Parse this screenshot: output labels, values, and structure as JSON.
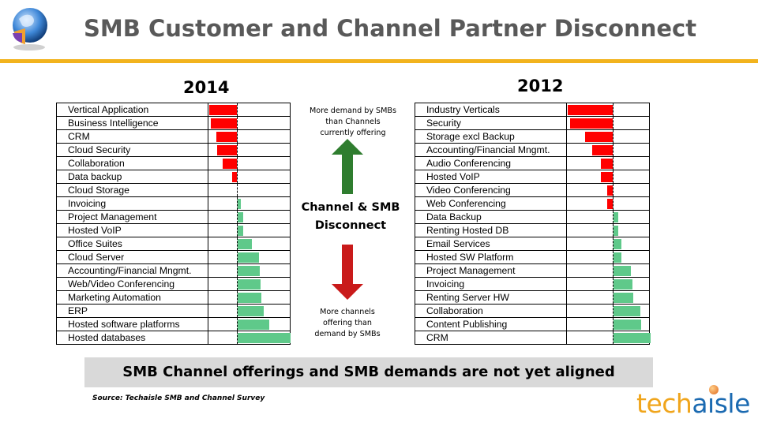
{
  "header": {
    "title": "SMB Customer and Channel Partner Disconnect"
  },
  "middle": {
    "top_note": [
      "More demand by SMBs",
      "than Channels",
      "currently offering"
    ],
    "center_label": [
      "Channel & SMB",
      "Disconnect"
    ],
    "bottom_note": [
      "More channels",
      "offering than",
      "demand by SMBs"
    ]
  },
  "banner": {
    "text": "SMB Channel offerings and SMB demands are not yet aligned"
  },
  "source": {
    "text": "Source: Techaisle SMB and Channel Survey"
  },
  "logo": {
    "part1": "tech",
    "part2": "a",
    "part3": "ı",
    "part4": "sle"
  },
  "colors": {
    "accent": "#f2b31d",
    "negative": "#ff0000",
    "positive": "#5fc98a",
    "banner": "#d9d9d9"
  },
  "chart_data": [
    {
      "type": "bar",
      "title": "2014",
      "orientation": "horizontal",
      "xlim": [
        -1.0,
        1.9
      ],
      "categories": [
        "Vertical Application",
        "Business Intelligence",
        "CRM",
        "Cloud Security",
        "Collaboration",
        "Data backup",
        "Cloud Storage",
        "Invoicing",
        "Project Management",
        "Hosted VoIP",
        "Office Suites",
        "Cloud Server",
        "Accounting/Financial Mngmt.",
        "Web/Video Conferencing",
        "Marketing Automation",
        "ERP",
        "Hosted software platforms",
        "Hosted databases"
      ],
      "values": [
        -0.98,
        -0.93,
        -0.72,
        -0.69,
        -0.51,
        -0.17,
        0,
        0.12,
        0.2,
        0.2,
        0.5,
        0.75,
        0.78,
        0.8,
        0.83,
        0.93,
        1.13,
        1.87
      ]
    },
    {
      "type": "bar",
      "title": "2012",
      "orientation": "horizontal",
      "xlim": [
        -1.0,
        0.8
      ],
      "categories": [
        "Industry Verticals",
        "Security",
        "Storage excl Backup",
        "Accounting/Financial Mngmt.",
        "Audio Conferencing",
        "Hosted VoIP",
        "Video Conferencing",
        "Web Conferencing",
        "Data Backup",
        "Renting Hosted DB",
        "Email Services",
        "Hosted SW Platform",
        "Project Management",
        "Invoicing",
        "Renting Server HW",
        "Collaboration",
        "Content Publishing",
        "CRM"
      ],
      "values": [
        -0.98,
        -0.93,
        -0.6,
        -0.46,
        -0.27,
        -0.27,
        -0.13,
        -0.13,
        0.09,
        0.09,
        0.16,
        0.16,
        0.38,
        0.4,
        0.42,
        0.58,
        0.6,
        0.8
      ]
    }
  ]
}
